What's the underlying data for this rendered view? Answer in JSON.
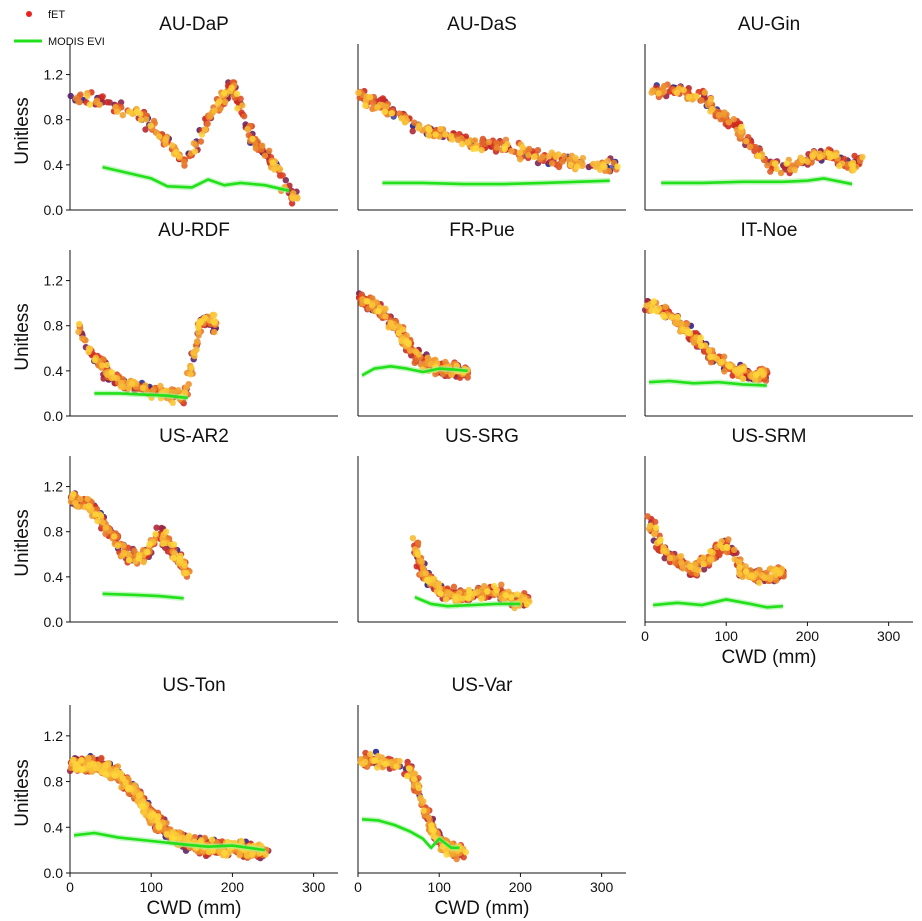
{
  "legend": {
    "items": [
      {
        "label": "fET",
        "color": "#e8231d",
        "marker": "point"
      },
      {
        "label": "MODIS EVI",
        "color": "#22e01a",
        "marker": "line"
      }
    ]
  },
  "palette": {
    "density_low": "#a9a9c4",
    "density_mid": "#1f1f8c",
    "density_high": "#d42a1f",
    "density_peak": "#ffd93b",
    "evi_line": "#22e01a",
    "evi_band": "#9df09a"
  },
  "chart_data": [
    {
      "type": "scatter",
      "title": "AU-DaP",
      "ylabel": "Unitless",
      "xlabel": "",
      "xlim": [
        0,
        330
      ],
      "ylim": [
        0,
        1.4
      ],
      "grid": false,
      "yticks": [
        "0.0",
        "0.4",
        "0.8",
        "1.2"
      ],
      "xticks": [],
      "fET": [
        [
          0,
          0.98
        ],
        [
          20,
          1.0
        ],
        [
          40,
          0.97
        ],
        [
          60,
          0.9
        ],
        [
          80,
          0.85
        ],
        [
          100,
          0.78
        ],
        [
          115,
          0.62
        ],
        [
          130,
          0.5
        ],
        [
          145,
          0.43
        ],
        [
          155,
          0.6
        ],
        [
          165,
          0.75
        ],
        [
          180,
          0.9
        ],
        [
          190,
          1.0
        ],
        [
          200,
          1.1
        ],
        [
          210,
          0.9
        ],
        [
          220,
          0.7
        ],
        [
          230,
          0.58
        ],
        [
          240,
          0.5
        ],
        [
          255,
          0.35
        ],
        [
          270,
          0.15
        ],
        [
          280,
          0.1
        ]
      ],
      "evi": [
        [
          40,
          0.38
        ],
        [
          70,
          0.33
        ],
        [
          100,
          0.28
        ],
        [
          120,
          0.21
        ],
        [
          150,
          0.2
        ],
        [
          170,
          0.27
        ],
        [
          190,
          0.22
        ],
        [
          210,
          0.24
        ],
        [
          240,
          0.22
        ],
        [
          270,
          0.17
        ]
      ]
    },
    {
      "type": "scatter",
      "title": "AU-DaS",
      "ylabel": "",
      "xlabel": "",
      "xlim": [
        0,
        330
      ],
      "ylim": [
        0,
        1.4
      ],
      "grid": false,
      "yticks": [],
      "xticks": [],
      "fET": [
        [
          0,
          1.0
        ],
        [
          20,
          0.95
        ],
        [
          40,
          0.88
        ],
        [
          60,
          0.8
        ],
        [
          80,
          0.72
        ],
        [
          100,
          0.67
        ],
        [
          120,
          0.64
        ],
        [
          140,
          0.6
        ],
        [
          160,
          0.58
        ],
        [
          180,
          0.55
        ],
        [
          200,
          0.52
        ],
        [
          220,
          0.48
        ],
        [
          240,
          0.45
        ],
        [
          260,
          0.43
        ],
        [
          280,
          0.41
        ],
        [
          300,
          0.4
        ],
        [
          320,
          0.4
        ]
      ],
      "evi": [
        [
          30,
          0.24
        ],
        [
          80,
          0.24
        ],
        [
          130,
          0.23
        ],
        [
          180,
          0.23
        ],
        [
          230,
          0.24
        ],
        [
          270,
          0.25
        ],
        [
          310,
          0.26
        ]
      ]
    },
    {
      "type": "scatter",
      "title": "AU-Gin",
      "ylabel": "",
      "xlabel": "",
      "xlim": [
        0,
        330
      ],
      "ylim": [
        0,
        1.4
      ],
      "grid": false,
      "yticks": [],
      "xticks": [],
      "fET": [
        [
          10,
          1.05
        ],
        [
          30,
          1.08
        ],
        [
          50,
          1.05
        ],
        [
          70,
          1.0
        ],
        [
          90,
          0.88
        ],
        [
          110,
          0.75
        ],
        [
          130,
          0.58
        ],
        [
          150,
          0.42
        ],
        [
          170,
          0.38
        ],
        [
          190,
          0.42
        ],
        [
          210,
          0.48
        ],
        [
          230,
          0.5
        ],
        [
          250,
          0.38
        ],
        [
          265,
          0.45
        ]
      ],
      "evi": [
        [
          20,
          0.24
        ],
        [
          70,
          0.24
        ],
        [
          120,
          0.25
        ],
        [
          170,
          0.25
        ],
        [
          200,
          0.26
        ],
        [
          220,
          0.28
        ],
        [
          255,
          0.23
        ]
      ]
    },
    {
      "type": "scatter",
      "title": "AU-RDF",
      "ylabel": "Unitless",
      "xlabel": "",
      "xlim": [
        0,
        330
      ],
      "ylim": [
        0,
        1.4
      ],
      "grid": false,
      "yticks": [
        "0.0",
        "0.4",
        "0.8",
        "1.2"
      ],
      "xticks": [],
      "fET": [
        [
          10,
          0.8
        ],
        [
          30,
          0.52
        ],
        [
          40,
          0.45
        ],
        [
          50,
          0.35
        ],
        [
          70,
          0.28
        ],
        [
          90,
          0.25
        ],
        [
          110,
          0.22
        ],
        [
          130,
          0.18
        ],
        [
          140,
          0.15
        ],
        [
          160,
          0.8
        ],
        [
          170,
          0.85
        ],
        [
          180,
          0.8
        ]
      ],
      "evi": [
        [
          30,
          0.2
        ],
        [
          60,
          0.2
        ],
        [
          90,
          0.19
        ],
        [
          120,
          0.18
        ],
        [
          145,
          0.16
        ]
      ]
    },
    {
      "type": "scatter",
      "title": "FR-Pue",
      "ylabel": "",
      "xlabel": "",
      "xlim": [
        0,
        330
      ],
      "ylim": [
        0,
        1.4
      ],
      "grid": false,
      "yticks": [],
      "xticks": [],
      "fET": [
        [
          0,
          1.05
        ],
        [
          15,
          1.0
        ],
        [
          30,
          0.92
        ],
        [
          45,
          0.8
        ],
        [
          60,
          0.65
        ],
        [
          75,
          0.52
        ],
        [
          90,
          0.45
        ],
        [
          105,
          0.42
        ],
        [
          120,
          0.4
        ],
        [
          135,
          0.38
        ]
      ],
      "evi": [
        [
          5,
          0.36
        ],
        [
          20,
          0.42
        ],
        [
          40,
          0.44
        ],
        [
          60,
          0.42
        ],
        [
          80,
          0.39
        ],
        [
          100,
          0.42
        ],
        [
          120,
          0.41
        ],
        [
          135,
          0.4
        ]
      ]
    },
    {
      "type": "scatter",
      "title": "IT-Noe",
      "ylabel": "",
      "xlabel": "",
      "xlim": [
        0,
        330
      ],
      "ylim": [
        0,
        1.4
      ],
      "grid": false,
      "yticks": [],
      "xticks": [],
      "fET": [
        [
          0,
          1.0
        ],
        [
          20,
          0.95
        ],
        [
          40,
          0.85
        ],
        [
          60,
          0.7
        ],
        [
          80,
          0.55
        ],
        [
          100,
          0.45
        ],
        [
          120,
          0.38
        ],
        [
          140,
          0.36
        ],
        [
          150,
          0.38
        ]
      ],
      "evi": [
        [
          5,
          0.3
        ],
        [
          30,
          0.31
        ],
        [
          60,
          0.29
        ],
        [
          90,
          0.3
        ],
        [
          120,
          0.28
        ],
        [
          150,
          0.27
        ]
      ]
    },
    {
      "type": "scatter",
      "title": "US-AR2",
      "ylabel": "Unitless",
      "xlabel": "",
      "xlim": [
        0,
        330
      ],
      "ylim": [
        0,
        1.4
      ],
      "grid": false,
      "yticks": [
        "0.0",
        "0.4",
        "0.8",
        "1.2"
      ],
      "xticks": [],
      "fET": [
        [
          0,
          1.1
        ],
        [
          20,
          1.05
        ],
        [
          35,
          0.95
        ],
        [
          50,
          0.78
        ],
        [
          65,
          0.62
        ],
        [
          80,
          0.55
        ],
        [
          95,
          0.6
        ],
        [
          110,
          0.8
        ],
        [
          120,
          0.7
        ],
        [
          135,
          0.55
        ],
        [
          145,
          0.42
        ]
      ],
      "evi": [
        [
          40,
          0.25
        ],
        [
          80,
          0.24
        ],
        [
          110,
          0.23
        ],
        [
          140,
          0.21
        ]
      ]
    },
    {
      "type": "scatter",
      "title": "US-SRG",
      "ylabel": "",
      "xlabel": "",
      "xlim": [
        0,
        330
      ],
      "ylim": [
        0,
        1.4
      ],
      "grid": false,
      "yticks": [],
      "xticks": [],
      "fET": [
        [
          70,
          0.7
        ],
        [
          80,
          0.45
        ],
        [
          95,
          0.32
        ],
        [
          110,
          0.25
        ],
        [
          130,
          0.22
        ],
        [
          150,
          0.25
        ],
        [
          170,
          0.28
        ],
        [
          190,
          0.2
        ],
        [
          210,
          0.2
        ]
      ],
      "evi": [
        [
          70,
          0.22
        ],
        [
          90,
          0.16
        ],
        [
          110,
          0.14
        ],
        [
          140,
          0.15
        ],
        [
          170,
          0.16
        ],
        [
          200,
          0.16
        ]
      ]
    },
    {
      "type": "scatter",
      "title": "US-SRM",
      "ylabel": "",
      "xlabel": "CWD (mm)",
      "xlim": [
        0,
        330
      ],
      "ylim": [
        0,
        1.4
      ],
      "grid": false,
      "yticks": [],
      "xticks": [
        "0",
        "100",
        "200",
        "300"
      ],
      "fET": [
        [
          5,
          0.9
        ],
        [
          20,
          0.65
        ],
        [
          40,
          0.55
        ],
        [
          60,
          0.45
        ],
        [
          80,
          0.58
        ],
        [
          100,
          0.7
        ],
        [
          120,
          0.45
        ],
        [
          140,
          0.4
        ],
        [
          160,
          0.42
        ],
        [
          170,
          0.45
        ]
      ],
      "evi": [
        [
          10,
          0.15
        ],
        [
          40,
          0.17
        ],
        [
          70,
          0.15
        ],
        [
          100,
          0.2
        ],
        [
          130,
          0.16
        ],
        [
          150,
          0.13
        ],
        [
          170,
          0.14
        ]
      ]
    },
    {
      "type": "scatter",
      "title": "US-Ton",
      "ylabel": "Unitless",
      "xlabel": "CWD (mm)",
      "xlim": [
        0,
        330
      ],
      "ylim": [
        0,
        1.4
      ],
      "grid": false,
      "yticks": [
        "0.0",
        "0.4",
        "0.8",
        "1.2"
      ],
      "xticks": [
        "0",
        "100",
        "200",
        "300"
      ],
      "fET": [
        [
          0,
          0.95
        ],
        [
          20,
          0.95
        ],
        [
          40,
          0.93
        ],
        [
          60,
          0.85
        ],
        [
          80,
          0.7
        ],
        [
          100,
          0.5
        ],
        [
          120,
          0.35
        ],
        [
          140,
          0.28
        ],
        [
          160,
          0.24
        ],
        [
          180,
          0.22
        ],
        [
          200,
          0.22
        ],
        [
          220,
          0.2
        ],
        [
          240,
          0.18
        ]
      ],
      "evi": [
        [
          5,
          0.33
        ],
        [
          30,
          0.35
        ],
        [
          60,
          0.31
        ],
        [
          100,
          0.28
        ],
        [
          140,
          0.25
        ],
        [
          170,
          0.23
        ],
        [
          200,
          0.24
        ],
        [
          240,
          0.2
        ]
      ]
    },
    {
      "type": "scatter",
      "title": "US-Var",
      "ylabel": "",
      "xlabel": "CWD (mm)",
      "xlim": [
        0,
        330
      ],
      "ylim": [
        0,
        1.4
      ],
      "grid": false,
      "yticks": [],
      "xticks": [
        "0",
        "100",
        "200",
        "300"
      ],
      "fET": [
        [
          0,
          1.0
        ],
        [
          20,
          0.98
        ],
        [
          40,
          0.96
        ],
        [
          60,
          0.92
        ],
        [
          70,
          0.85
        ],
        [
          80,
          0.6
        ],
        [
          90,
          0.4
        ],
        [
          100,
          0.3
        ],
        [
          110,
          0.22
        ],
        [
          120,
          0.2
        ],
        [
          130,
          0.18
        ]
      ],
      "evi": [
        [
          5,
          0.47
        ],
        [
          25,
          0.46
        ],
        [
          45,
          0.42
        ],
        [
          65,
          0.36
        ],
        [
          80,
          0.3
        ],
        [
          90,
          0.22
        ],
        [
          100,
          0.3
        ],
        [
          115,
          0.22
        ],
        [
          125,
          0.22
        ]
      ]
    }
  ]
}
